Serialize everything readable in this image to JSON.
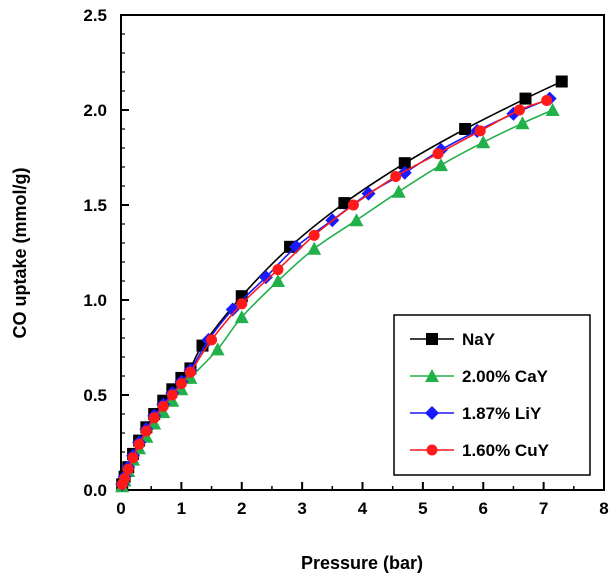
{
  "chart_data": {
    "type": "line",
    "title": "",
    "xlabel": "Pressure (bar)",
    "ylabel": "CO uptake (mmol/g)",
    "xlim": [
      0,
      8
    ],
    "ylim": [
      0,
      2.5
    ],
    "x_ticks": [
      "0",
      "1",
      "2",
      "3",
      "4",
      "5",
      "6",
      "7",
      "8"
    ],
    "y_ticks": [
      "0.0",
      "0.5",
      "1.0",
      "1.5",
      "2.0",
      "2.5"
    ],
    "grid": false,
    "legend_position": "bottom-right",
    "series": [
      {
        "name": "NaY",
        "marker": "square",
        "color": "#000000",
        "line_color": "#000000",
        "x": [
          0.02,
          0.06,
          0.12,
          0.2,
          0.3,
          0.42,
          0.55,
          0.7,
          0.85,
          1.0,
          1.15,
          1.35,
          2.0,
          2.8,
          3.7,
          4.7,
          5.7,
          6.7,
          7.3
        ],
        "y": [
          0.03,
          0.07,
          0.12,
          0.19,
          0.26,
          0.33,
          0.4,
          0.47,
          0.53,
          0.59,
          0.64,
          0.76,
          1.02,
          1.28,
          1.51,
          1.72,
          1.9,
          2.06,
          2.15
        ]
      },
      {
        "name": "2.00% CaY",
        "marker": "triangle",
        "color": "#22b04b",
        "line_color": "#22b04b",
        "x": [
          0.02,
          0.06,
          0.12,
          0.2,
          0.3,
          0.42,
          0.55,
          0.7,
          0.85,
          1.0,
          1.15,
          1.6,
          2.0,
          2.6,
          3.2,
          3.9,
          4.6,
          5.3,
          6.0,
          6.65,
          7.15
        ],
        "y": [
          0.02,
          0.05,
          0.1,
          0.16,
          0.22,
          0.28,
          0.35,
          0.41,
          0.47,
          0.53,
          0.59,
          0.74,
          0.91,
          1.1,
          1.27,
          1.42,
          1.57,
          1.71,
          1.83,
          1.93,
          2.0
        ]
      },
      {
        "name": "1.87% LiY",
        "marker": "diamond",
        "color": "#1a1aff",
        "line_color": "#1a1aff",
        "x": [
          0.02,
          0.06,
          0.12,
          0.2,
          0.3,
          0.42,
          0.55,
          0.7,
          0.85,
          1.0,
          1.15,
          1.45,
          1.85,
          2.4,
          2.9,
          3.5,
          4.1,
          4.7,
          5.3,
          5.9,
          6.5,
          7.1
        ],
        "y": [
          0.03,
          0.07,
          0.12,
          0.18,
          0.25,
          0.32,
          0.39,
          0.45,
          0.51,
          0.57,
          0.63,
          0.79,
          0.95,
          1.12,
          1.28,
          1.42,
          1.56,
          1.67,
          1.79,
          1.89,
          1.98,
          2.06
        ]
      },
      {
        "name": "1.60% CuY",
        "marker": "circle",
        "color": "#ff1a1a",
        "line_color": "#ff1a1a",
        "x": [
          0.02,
          0.06,
          0.12,
          0.2,
          0.3,
          0.42,
          0.55,
          0.7,
          0.85,
          1.0,
          1.15,
          1.5,
          2.0,
          2.6,
          3.2,
          3.85,
          4.55,
          5.25,
          5.95,
          6.6,
          7.05
        ],
        "y": [
          0.03,
          0.06,
          0.11,
          0.17,
          0.24,
          0.31,
          0.38,
          0.44,
          0.5,
          0.56,
          0.62,
          0.79,
          0.98,
          1.16,
          1.34,
          1.5,
          1.65,
          1.77,
          1.89,
          2.0,
          2.05
        ]
      }
    ]
  }
}
